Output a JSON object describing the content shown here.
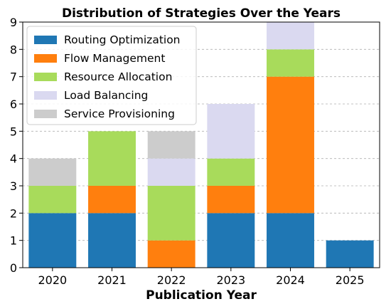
{
  "chart_data": {
    "type": "bar",
    "stacked": true,
    "title": "Distribution of Strategies Over the Years",
    "xlabel": "Publication Year",
    "ylabel": "",
    "categories": [
      "2020",
      "2021",
      "2022",
      "2023",
      "2024",
      "2025"
    ],
    "ylim": [
      0,
      9
    ],
    "yticks": [
      0,
      1,
      2,
      3,
      4,
      5,
      6,
      7,
      8,
      9
    ],
    "grid": "y-dashed",
    "legend_position": "top-left",
    "series": [
      {
        "name": "Routing Optimization",
        "color": "#1f77b4",
        "values": [
          2,
          2,
          0,
          2,
          2,
          1
        ]
      },
      {
        "name": "Flow Management",
        "color": "#ff7f0e",
        "values": [
          0,
          1,
          1,
          1,
          5,
          0
        ]
      },
      {
        "name": "Resource Allocation",
        "color": "#a8db5b",
        "values": [
          1,
          2,
          2,
          1,
          1,
          0
        ]
      },
      {
        "name": "Load Balancing",
        "color": "#dad9f0",
        "values": [
          0,
          0,
          1,
          2,
          1,
          0
        ]
      },
      {
        "name": "Service Provisioning",
        "color": "#cccccc",
        "values": [
          1,
          0,
          1,
          0,
          0,
          0
        ]
      }
    ]
  }
}
